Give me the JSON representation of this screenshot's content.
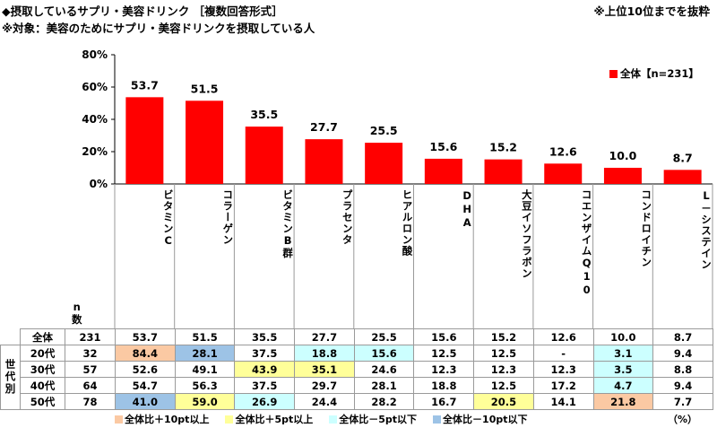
{
  "title": "◆摂取しているサプリ・美容ドリンク ［複数回答形式］",
  "subtitle": "※対象：美容のためにサプリ・美容ドリンクを摂取している人",
  "note": "※上位10位までを抜粋",
  "unit": "（%）",
  "n_label": "n\n数",
  "chart_data": {
    "type": "bar",
    "categories": [
      "ビタミンC",
      "コラーゲン",
      "ビタミンB群",
      "プラセンタ",
      "ヒアルロン酸",
      "DHA",
      "大豆イソフラボン",
      "コエンザイムQ10",
      "コンドロイチン",
      "L-システイン"
    ],
    "series": [
      {
        "name": "全体【n=231】",
        "values": [
          53.7,
          51.5,
          35.5,
          27.7,
          25.5,
          15.6,
          15.2,
          12.6,
          10.0,
          8.7
        ],
        "color": "#ff0000"
      }
    ],
    "yticks": [
      "0%",
      "20%",
      "40%",
      "60%",
      "80%"
    ],
    "ylim": [
      0,
      80
    ],
    "grid": false,
    "legend_position": "top-right"
  },
  "category_display": [
    "ビタミンC",
    "コラーゲン",
    "ビタミンB群",
    "プラセンタ",
    "ヒアルロン酸",
    "DHA",
    "大豆イソフラボン",
    "コエンザイムQ10",
    "コンドロイチン",
    "L－システイン"
  ],
  "table": {
    "side_label": "世代別",
    "rows": [
      {
        "label": "全体",
        "n": "231",
        "values": [
          "53.7",
          "51.5",
          "35.5",
          "27.7",
          "25.5",
          "15.6",
          "15.2",
          "12.6",
          "10.0",
          "8.7"
        ],
        "marks": [
          "",
          "",
          "",
          "",
          "",
          "",
          "",
          "",
          "",
          ""
        ]
      },
      {
        "label": "20代",
        "n": "32",
        "values": [
          "84.4",
          "28.1",
          "37.5",
          "18.8",
          "15.6",
          "12.5",
          "12.5",
          "-",
          "3.1",
          "9.4"
        ],
        "marks": [
          "orange",
          "blue",
          "",
          "lblue",
          "lblue",
          "",
          "",
          "",
          "lblue",
          ""
        ]
      },
      {
        "label": "30代",
        "n": "57",
        "values": [
          "52.6",
          "49.1",
          "43.9",
          "35.1",
          "24.6",
          "12.3",
          "12.3",
          "12.3",
          "3.5",
          "8.8"
        ],
        "marks": [
          "",
          "",
          "yellow",
          "yellow",
          "",
          "",
          "",
          "",
          "lblue",
          ""
        ]
      },
      {
        "label": "40代",
        "n": "64",
        "values": [
          "54.7",
          "56.3",
          "37.5",
          "29.7",
          "28.1",
          "18.8",
          "12.5",
          "17.2",
          "4.7",
          "9.4"
        ],
        "marks": [
          "",
          "",
          "",
          "",
          "",
          "",
          "",
          "",
          "lblue",
          ""
        ]
      },
      {
        "label": "50代",
        "n": "78",
        "values": [
          "41.0",
          "59.0",
          "26.9",
          "24.4",
          "28.2",
          "16.7",
          "20.5",
          "14.1",
          "21.8",
          "7.7"
        ],
        "marks": [
          "blue",
          "yellow",
          "lblue",
          "",
          "",
          "",
          "yellow",
          "",
          "orange",
          ""
        ]
      }
    ]
  },
  "keys": [
    {
      "label": "全体比＋10pt以上",
      "color": "#fbc9a3"
    },
    {
      "label": "全体比＋5pt以上",
      "color": "#ffff99"
    },
    {
      "label": "全体比－5pt以下",
      "color": "#ccffff"
    },
    {
      "label": "全体比－10pt以下",
      "color": "#9dc3e6"
    }
  ]
}
